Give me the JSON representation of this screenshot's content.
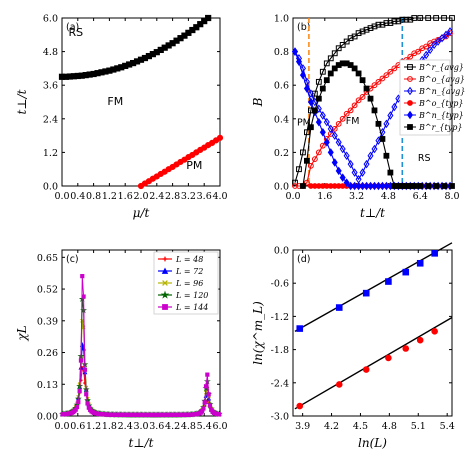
{
  "chart_data": [
    {
      "panel": "(a)",
      "type": "line",
      "xlabel": "μ/t",
      "ylabel": "t⊥/t",
      "xlim": [
        0,
        4.0
      ],
      "ylim": [
        0,
        6.0
      ],
      "xticks": [
        "0.0",
        "0.4",
        "0.8",
        "1.2",
        "1.6",
        "2.0",
        "2.4",
        "2.8",
        "3.2",
        "3.6",
        "4.0"
      ],
      "yticks": [
        "0.0",
        "1.2",
        "2.4",
        "3.6",
        "4.8",
        "6.0"
      ],
      "annotations": [
        "RS",
        "FM",
        "PM"
      ],
      "series": [
        {
          "color": "#000000",
          "marker": "square",
          "x": [
            0.0,
            0.1,
            0.2,
            0.3,
            0.4,
            0.5,
            0.6,
            0.7,
            0.8,
            0.9,
            1.0,
            1.1,
            1.2,
            1.3,
            1.4,
            1.5,
            1.6,
            1.7,
            1.8,
            1.9,
            2.0,
            2.1,
            2.2,
            2.3,
            2.4,
            2.5,
            2.6,
            2.7,
            2.8,
            2.9,
            3.0,
            3.1,
            3.2,
            3.3,
            3.4,
            3.5,
            3.6,
            3.7
          ],
          "y": [
            3.9,
            3.9,
            3.91,
            3.92,
            3.93,
            3.94,
            3.96,
            3.98,
            4.0,
            4.03,
            4.06,
            4.09,
            4.12,
            4.16,
            4.2,
            4.24,
            4.29,
            4.34,
            4.39,
            4.45,
            4.51,
            4.57,
            4.64,
            4.71,
            4.78,
            4.86,
            4.94,
            5.02,
            5.1,
            5.19,
            5.28,
            5.37,
            5.47,
            5.57,
            5.67,
            5.78,
            5.89,
            6.0
          ]
        },
        {
          "color": "#ff0000",
          "marker": "circle",
          "x": [
            2.0,
            2.1,
            2.2,
            2.3,
            2.4,
            2.5,
            2.6,
            2.7,
            2.8,
            2.9,
            3.0,
            3.1,
            3.2,
            3.3,
            3.4,
            3.5,
            3.6,
            3.7,
            3.8,
            3.9,
            4.0
          ],
          "y": [
            0.0,
            0.09,
            0.17,
            0.26,
            0.34,
            0.43,
            0.51,
            0.6,
            0.68,
            0.77,
            0.86,
            0.94,
            1.03,
            1.11,
            1.2,
            1.29,
            1.37,
            1.46,
            1.54,
            1.63,
            1.72
          ]
        }
      ]
    },
    {
      "panel": "(b)",
      "type": "line",
      "xlabel": "t⊥/t",
      "ylabel": "B",
      "xlim": [
        0,
        8.0
      ],
      "ylim": [
        0,
        1.0
      ],
      "xticks": [
        "0.0",
        "1.6",
        "3.2",
        "4.8",
        "6.4",
        "8.0"
      ],
      "yticks": [
        "0.0",
        "0.2",
        "0.4",
        "0.6",
        "0.8",
        "1.0"
      ],
      "annotations": [
        "PM",
        "FM",
        "RS"
      ],
      "vlines": [
        {
          "x": 0.8,
          "color": "#ff8c1a",
          "style": "dashed"
        },
        {
          "x": 5.5,
          "color": "#1f8fd6",
          "style": "dashed"
        }
      ],
      "legend": [
        "B^r_{avg}",
        "B^o_{avg}",
        "B^n_{avg}",
        "B^o_{typ}",
        "B^n_{typ}",
        "B^r_{typ}"
      ],
      "legend_position": "right",
      "series": [
        {
          "legend": "B^r_{avg}",
          "color": "#000000",
          "marker": "square-open",
          "x": [
            0.1,
            0.3,
            0.5,
            0.7,
            0.9,
            1.1,
            1.3,
            1.5,
            1.7,
            1.9,
            2.1,
            2.3,
            2.5,
            2.7,
            2.9,
            3.1,
            3.3,
            3.5,
            3.7,
            3.9,
            4.1,
            4.3,
            4.5,
            4.7,
            4.9,
            5.1,
            5.3,
            5.5,
            5.7,
            5.9,
            6.1,
            6.4,
            6.8,
            7.2,
            7.6,
            8.0
          ],
          "y": [
            0.02,
            0.1,
            0.2,
            0.32,
            0.45,
            0.55,
            0.62,
            0.68,
            0.73,
            0.76,
            0.79,
            0.82,
            0.84,
            0.86,
            0.88,
            0.89,
            0.91,
            0.92,
            0.93,
            0.94,
            0.95,
            0.96,
            0.96,
            0.97,
            0.97,
            0.98,
            0.98,
            0.99,
            0.99,
            0.99,
            1.0,
            1.0,
            1.0,
            1.0,
            1.0,
            1.0
          ]
        },
        {
          "legend": "B^o_{avg}",
          "color": "#ff0000",
          "marker": "circle-open",
          "x": [
            0.1,
            0.3,
            0.5,
            0.7,
            0.9,
            1.1,
            1.3,
            1.5,
            1.7,
            1.9,
            2.1,
            2.3,
            2.5,
            2.7,
            2.9,
            3.1,
            3.3,
            3.5,
            3.7,
            3.9,
            4.1,
            4.3,
            4.5,
            4.7,
            4.9,
            5.1,
            5.3,
            5.5,
            5.7,
            5.9,
            6.1,
            6.3,
            6.5,
            6.7,
            6.9,
            7.1,
            7.3,
            7.5,
            7.7,
            7.9
          ],
          "y": [
            0.0,
            0.0,
            0.0,
            0.02,
            0.12,
            0.16,
            0.2,
            0.24,
            0.28,
            0.31,
            0.34,
            0.37,
            0.4,
            0.43,
            0.45,
            0.48,
            0.51,
            0.53,
            0.56,
            0.58,
            0.6,
            0.62,
            0.64,
            0.66,
            0.68,
            0.7,
            0.72,
            0.74,
            0.75,
            0.77,
            0.79,
            0.8,
            0.82,
            0.83,
            0.85,
            0.86,
            0.87,
            0.88,
            0.89,
            0.91
          ]
        },
        {
          "legend": "B^n_{avg}",
          "color": "#0000ff",
          "marker": "diamond-open",
          "x": [
            0.1,
            0.3,
            0.5,
            0.7,
            0.9,
            1.1,
            1.3,
            1.5,
            1.7,
            1.9,
            2.1,
            2.3,
            2.5,
            2.7,
            2.9,
            3.1,
            3.3,
            3.5,
            3.7,
            3.9,
            4.1,
            4.3,
            4.5,
            4.7,
            4.9,
            5.1,
            5.3,
            5.5,
            5.7,
            5.9,
            6.1,
            6.3,
            6.5,
            6.7,
            6.9,
            7.1,
            7.3,
            7.5,
            7.7,
            7.9
          ],
          "y": [
            0.8,
            0.76,
            0.7,
            0.62,
            0.55,
            0.5,
            0.46,
            0.42,
            0.38,
            0.34,
            0.3,
            0.26,
            0.22,
            0.18,
            0.13,
            0.08,
            0.04,
            0.08,
            0.13,
            0.18,
            0.22,
            0.27,
            0.32,
            0.37,
            0.42,
            0.47,
            0.52,
            0.56,
            0.6,
            0.64,
            0.68,
            0.72,
            0.75,
            0.78,
            0.81,
            0.84,
            0.86,
            0.88,
            0.9,
            0.92
          ]
        },
        {
          "legend": "B^o_{typ}",
          "color": "#ff0000",
          "marker": "circle",
          "x": [
            0.9,
            1.1,
            1.3,
            1.5,
            1.7,
            1.9,
            2.1,
            2.3,
            2.5,
            2.7,
            2.9,
            3.1,
            3.3,
            3.5,
            3.7,
            3.9,
            4.1,
            4.3,
            4.5,
            4.7,
            4.9,
            5.1,
            5.3,
            5.5,
            5.7,
            5.9,
            6.1,
            6.3,
            6.5,
            6.7,
            6.9,
            7.1,
            7.3,
            7.5,
            7.7,
            7.9
          ],
          "y": [
            0.0,
            0.0,
            0.0,
            0.0,
            0.0,
            0.0,
            0.0,
            0.0,
            0.0,
            0.0,
            0.0,
            0.0,
            0.0,
            0.0,
            0.0,
            0.0,
            0.0,
            0.0,
            0.0,
            0.0,
            0.0,
            0.0,
            0.0,
            0.0,
            0.0,
            0.0,
            0.0,
            0.0,
            0.0,
            0.0,
            0.0,
            0.0,
            0.0,
            0.0,
            0.0,
            0.0
          ]
        },
        {
          "legend": "B^n_{typ}",
          "color": "#0000ff",
          "marker": "diamond",
          "x": [
            0.1,
            0.3,
            0.5,
            0.7,
            0.9,
            1.1,
            1.3,
            1.5,
            1.7,
            1.9,
            2.1,
            2.3,
            2.5,
            2.7,
            2.9,
            3.1,
            3.3,
            3.5,
            3.7,
            3.9,
            4.1,
            4.3,
            4.5,
            4.7,
            4.9,
            5.1,
            5.3,
            5.5,
            5.7,
            5.9,
            6.1,
            6.3,
            6.5,
            6.7,
            6.9,
            7.1,
            7.3,
            7.5,
            7.7,
            7.9
          ],
          "y": [
            0.8,
            0.74,
            0.66,
            0.58,
            0.5,
            0.44,
            0.38,
            0.32,
            0.26,
            0.2,
            0.14,
            0.09,
            0.05,
            0.02,
            0.0,
            0.0,
            0.0,
            0.0,
            0.0,
            0.0,
            0.0,
            0.0,
            0.0,
            0.0,
            0.0,
            0.0,
            0.0,
            0.0,
            0.0,
            0.0,
            0.0,
            0.0,
            0.0,
            0.0,
            0.0,
            0.0,
            0.0,
            0.0,
            0.0,
            0.0
          ]
        },
        {
          "legend": "B^r_{typ}",
          "color": "#000000",
          "marker": "square",
          "x": [
            0.5,
            0.7,
            0.9,
            1.1,
            1.3,
            1.5,
            1.7,
            1.9,
            2.1,
            2.3,
            2.5,
            2.7,
            2.9,
            3.1,
            3.3,
            3.5,
            3.7,
            3.9,
            4.1,
            4.3,
            4.5,
            4.7,
            4.9,
            5.1,
            5.3,
            5.5,
            5.7,
            5.9,
            6.1,
            6.4,
            6.8,
            7.2,
            7.6,
            8.0
          ],
          "y": [
            0.0,
            0.15,
            0.35,
            0.45,
            0.52,
            0.58,
            0.63,
            0.67,
            0.7,
            0.72,
            0.73,
            0.73,
            0.72,
            0.7,
            0.67,
            0.63,
            0.58,
            0.52,
            0.45,
            0.37,
            0.28,
            0.18,
            0.08,
            0.0,
            0.0,
            0.0,
            0.0,
            0.0,
            0.0,
            0.0,
            0.0,
            0.0,
            0.0,
            0.0
          ]
        }
      ]
    },
    {
      "panel": "(c)",
      "type": "line",
      "xlabel": "t⊥/t",
      "ylabel": "χL",
      "xlim": [
        0,
        6.0
      ],
      "ylim": [
        0,
        0.68
      ],
      "xticks": [
        "0.0",
        "0.6",
        "1.2",
        "1.8",
        "2.4",
        "3.0",
        "3.6",
        "4.2",
        "4.8",
        "5.4",
        "6.0"
      ],
      "yticks": [
        "0.00",
        "0.13",
        "0.26",
        "0.39",
        "0.52",
        "0.65"
      ],
      "legend": [
        "L = 48",
        "L = 72",
        "L = 96",
        "L = 120",
        "L = 144"
      ],
      "legend_position": "top-right",
      "peaks": [
        0.79,
        5.51
      ],
      "series": [
        {
          "legend": "L = 48",
          "color": "#ff0000",
          "marker": "plus",
          "peak_heights": [
            0.2,
            0.06
          ]
        },
        {
          "legend": "L = 72",
          "color": "#0000ff",
          "marker": "triangle",
          "peak_heights": [
            0.3,
            0.09
          ]
        },
        {
          "legend": "L = 96",
          "color": "#b5b500",
          "marker": "x",
          "peak_heights": [
            0.41,
            0.11
          ]
        },
        {
          "legend": "L = 120",
          "color": "#006400",
          "marker": "star",
          "peak_heights": [
            0.52,
            0.14
          ]
        },
        {
          "legend": "L = 144",
          "color": "#cc00cc",
          "marker": "square",
          "peak_heights": [
            0.66,
            0.17
          ]
        }
      ]
    },
    {
      "panel": "(d)",
      "type": "scatter",
      "xlabel": "ln(L)",
      "ylabel": "ln(χ^m_L)",
      "xlim": [
        3.8,
        5.45
      ],
      "ylim": [
        -3.0,
        0.0
      ],
      "xticks": [
        "3.9",
        "4.2",
        "4.5",
        "4.8",
        "5.1",
        "5.4"
      ],
      "yticks": [
        "-3.0",
        "-2.4",
        "-1.8",
        "-1.2",
        "-0.6",
        "0.0"
      ],
      "series": [
        {
          "color": "#0000ff",
          "marker": "square",
          "x": [
            3.87,
            4.28,
            4.56,
            4.79,
            4.97,
            5.12,
            5.27
          ],
          "y": [
            -1.42,
            -1.04,
            -0.78,
            -0.57,
            -0.4,
            -0.24,
            -0.06
          ],
          "fit_x": [
            3.82,
            5.45
          ],
          "fit_y": [
            -1.47,
            0.13
          ]
        },
        {
          "color": "#ff0000",
          "marker": "circle",
          "x": [
            3.87,
            4.28,
            4.56,
            4.79,
            4.97,
            5.12,
            5.27
          ],
          "y": [
            -2.82,
            -2.43,
            -2.16,
            -1.95,
            -1.78,
            -1.63,
            -1.47
          ],
          "fit_x": [
            3.82,
            5.45
          ],
          "fit_y": [
            -2.87,
            -1.22
          ]
        }
      ]
    }
  ]
}
